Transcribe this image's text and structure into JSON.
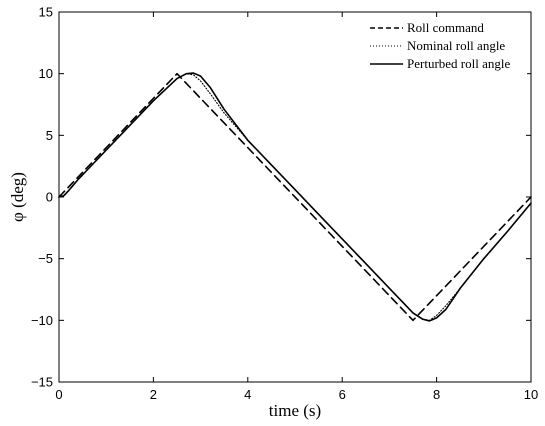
{
  "chart_data": {
    "type": "line",
    "title": "",
    "xlabel": "time (s)",
    "ylabel": "φ (deg)",
    "xlim": [
      0,
      10
    ],
    "ylim": [
      -15,
      15
    ],
    "x_ticks": [
      0,
      2,
      4,
      6,
      8,
      10
    ],
    "x_tick_labels": [
      "0",
      "2",
      "4",
      "6",
      "8",
      "10"
    ],
    "y_ticks": [
      -15,
      -10,
      -5,
      0,
      5,
      10,
      15
    ],
    "y_tick_labels": [
      "−15",
      "−10",
      "−5",
      "0",
      "5",
      "10",
      "15"
    ],
    "grid": false,
    "legend_position": "top-right",
    "series": [
      {
        "name": "Roll command",
        "style": "dashed",
        "color": "#000000",
        "x": [
          0,
          2.5,
          7.5,
          10
        ],
        "y": [
          0,
          10,
          -10,
          0
        ]
      },
      {
        "name": "Nominal roll angle",
        "style": "dotted",
        "color": "#000000",
        "x": [
          0,
          0.1,
          0.2,
          0.4,
          0.6,
          1.0,
          1.5,
          2.0,
          2.5,
          2.7,
          2.85,
          3.0,
          3.2,
          3.5,
          4.0,
          4.5,
          5.0,
          5.5,
          6.0,
          6.5,
          7.0,
          7.5,
          7.7,
          7.85,
          8.0,
          8.2,
          8.5,
          9.0,
          9.5,
          10.0
        ],
        "y": [
          0,
          0.1,
          0.5,
          1.4,
          2.2,
          3.8,
          5.8,
          7.8,
          9.6,
          10.0,
          9.9,
          9.4,
          8.4,
          6.8,
          4.6,
          2.6,
          0.6,
          -1.4,
          -3.4,
          -5.4,
          -7.4,
          -9.4,
          -9.9,
          -10.0,
          -9.6,
          -8.8,
          -7.4,
          -5.0,
          -2.8,
          -0.5
        ]
      },
      {
        "name": "Perturbed roll angle",
        "style": "solid",
        "color": "#000000",
        "x": [
          0,
          0.1,
          0.2,
          0.4,
          0.6,
          1.0,
          1.5,
          2.0,
          2.5,
          2.7,
          2.85,
          3.0,
          3.2,
          3.5,
          4.0,
          4.5,
          5.0,
          5.5,
          6.0,
          6.5,
          7.0,
          7.5,
          7.7,
          7.85,
          8.0,
          8.2,
          8.5,
          9.0,
          9.5,
          10.0
        ],
        "y": [
          0,
          0.1,
          0.5,
          1.4,
          2.2,
          3.8,
          5.8,
          7.8,
          9.6,
          10.0,
          10.05,
          9.8,
          8.9,
          7.1,
          4.6,
          2.6,
          0.6,
          -1.4,
          -3.4,
          -5.4,
          -7.4,
          -9.4,
          -9.9,
          -10.05,
          -9.8,
          -9.1,
          -7.4,
          -5.0,
          -2.8,
          -0.5
        ]
      }
    ]
  }
}
